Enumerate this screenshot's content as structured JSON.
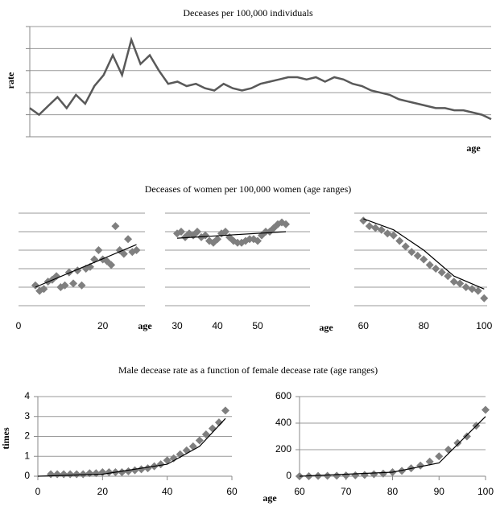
{
  "chart_data": [
    {
      "type": "line",
      "title": "Deceases per 100,000 individuals",
      "ylabel": "rate",
      "xlabel": "age",
      "color": "#595959",
      "grid": true,
      "axes": true,
      "ytick_labels": false,
      "xlim": [
        0,
        100
      ],
      "ylim": [
        0,
        5
      ],
      "yticks": [
        0,
        1,
        2,
        3,
        4,
        5
      ],
      "x": [
        0,
        2,
        4,
        6,
        8,
        10,
        12,
        14,
        16,
        18,
        20,
        22,
        24,
        26,
        28,
        30,
        32,
        34,
        36,
        38,
        40,
        42,
        44,
        46,
        48,
        50,
        52,
        54,
        56,
        58,
        60,
        62,
        64,
        66,
        68,
        70,
        72,
        74,
        76,
        78,
        80,
        82,
        84,
        86,
        88,
        90,
        92,
        94,
        96,
        98,
        100
      ],
      "values": [
        1.3,
        1.0,
        1.4,
        1.8,
        1.3,
        1.9,
        1.5,
        2.3,
        2.8,
        3.7,
        2.8,
        4.4,
        3.3,
        3.7,
        3.0,
        2.4,
        2.5,
        2.3,
        2.4,
        2.2,
        2.1,
        2.4,
        2.2,
        2.1,
        2.2,
        2.4,
        2.5,
        2.6,
        2.7,
        2.7,
        2.6,
        2.7,
        2.5,
        2.7,
        2.6,
        2.4,
        2.3,
        2.1,
        2.0,
        1.9,
        1.7,
        1.6,
        1.5,
        1.4,
        1.3,
        1.3,
        1.2,
        1.2,
        1.1,
        1.0,
        0.8
      ]
    },
    {
      "type": "scatter",
      "title": "Deceases of women per 100,000 women (age ranges)",
      "xlabel": "age",
      "color": "#7f7f7f",
      "grid": true,
      "ytick_labels": false,
      "xlim": [
        0,
        30
      ],
      "xticks": [
        0,
        20
      ],
      "ylim": [
        0,
        5
      ],
      "yticks": [
        0,
        1,
        2,
        3,
        4,
        5
      ],
      "x": [
        4,
        5,
        6,
        7,
        8,
        9,
        10,
        11,
        12,
        13,
        14,
        15,
        16,
        17,
        18,
        19,
        20,
        21,
        22,
        23,
        24,
        25,
        26,
        27,
        28
      ],
      "values": [
        1.1,
        0.8,
        0.9,
        1.3,
        1.4,
        1.6,
        1.0,
        1.1,
        1.8,
        1.2,
        1.9,
        1.1,
        2.0,
        2.1,
        2.5,
        3.0,
        2.5,
        2.4,
        2.2,
        4.3,
        3.0,
        2.8,
        3.6,
        2.9,
        3.0
      ],
      "trend_x": [
        4,
        28
      ],
      "trend_values": [
        1.0,
        3.3
      ]
    },
    {
      "type": "scatter",
      "xlabel": "age",
      "color": "#7f7f7f",
      "grid": true,
      "ytick_labels": false,
      "xlim": [
        27,
        63
      ],
      "xticks": [
        30,
        40,
        50
      ],
      "ylim": [
        0,
        5
      ],
      "yticks": [
        0,
        1,
        2,
        3,
        4,
        5
      ],
      "x": [
        30,
        31,
        32,
        33,
        34,
        35,
        36,
        37,
        38,
        39,
        40,
        41,
        42,
        43,
        44,
        45,
        46,
        47,
        48,
        49,
        50,
        51,
        52,
        53,
        54,
        55,
        56,
        57
      ],
      "values": [
        3.9,
        4.0,
        3.7,
        3.9,
        3.8,
        4.0,
        3.7,
        3.8,
        3.5,
        3.4,
        3.6,
        3.9,
        4.0,
        3.7,
        3.5,
        3.4,
        3.4,
        3.5,
        3.6,
        3.6,
        3.5,
        3.8,
        4.0,
        4.0,
        4.2,
        4.4,
        4.5,
        4.4
      ],
      "trend_x": [
        30,
        57
      ],
      "trend_values": [
        3.65,
        4.0
      ]
    },
    {
      "type": "scatter",
      "color": "#7f7f7f",
      "grid": true,
      "ytick_labels": false,
      "xlim": [
        57,
        101
      ],
      "xticks": [
        60,
        80,
        100
      ],
      "ylim": [
        0,
        5
      ],
      "yticks": [
        0,
        1,
        2,
        3,
        4,
        5
      ],
      "x": [
        60,
        62,
        64,
        66,
        68,
        70,
        72,
        74,
        76,
        78,
        80,
        82,
        84,
        86,
        88,
        90,
        92,
        94,
        96,
        98,
        100
      ],
      "values": [
        4.6,
        4.3,
        4.2,
        4.1,
        3.9,
        3.8,
        3.5,
        3.2,
        2.9,
        2.7,
        2.5,
        2.2,
        2.0,
        1.8,
        1.6,
        1.3,
        1.2,
        1.0,
        0.9,
        0.8,
        0.4
      ],
      "trend_x": [
        60,
        70,
        80,
        90,
        100
      ],
      "trend_values": [
        4.7,
        4.1,
        3.0,
        1.6,
        0.9
      ]
    },
    {
      "type": "scatter",
      "title": "Male decease rate as a function of female decease rate (age ranges)",
      "ylabel": "times",
      "color": "#7f7f7f",
      "grid": true,
      "axes": true,
      "xlim": [
        0,
        60
      ],
      "xticks": [
        0,
        20,
        40,
        60
      ],
      "ylim": [
        0,
        4
      ],
      "yticks": [
        0,
        1,
        2,
        3,
        4
      ],
      "x": [
        4,
        6,
        8,
        10,
        12,
        14,
        16,
        18,
        20,
        22,
        24,
        26,
        28,
        30,
        32,
        34,
        36,
        38,
        40,
        42,
        44,
        46,
        48,
        50,
        52,
        54,
        56,
        58
      ],
      "values": [
        0.1,
        0.1,
        0.1,
        0.1,
        0.1,
        0.1,
        0.15,
        0.15,
        0.2,
        0.2,
        0.2,
        0.2,
        0.25,
        0.3,
        0.35,
        0.4,
        0.5,
        0.6,
        0.8,
        0.9,
        1.1,
        1.3,
        1.5,
        1.8,
        2.1,
        2.4,
        2.7,
        3.3
      ],
      "trend_x": [
        0,
        20,
        40,
        50,
        58
      ],
      "trend_values": [
        0,
        0.1,
        0.6,
        1.5,
        2.9
      ]
    },
    {
      "type": "scatter",
      "xlabel": "age",
      "color": "#7f7f7f",
      "grid": true,
      "axes": true,
      "xlim": [
        60,
        100
      ],
      "xticks": [
        60,
        70,
        80,
        90,
        100
      ],
      "ylim": [
        0,
        600
      ],
      "yticks": [
        0,
        200,
        400,
        600
      ],
      "x": [
        60,
        62,
        64,
        66,
        68,
        70,
        72,
        74,
        76,
        78,
        80,
        82,
        84,
        86,
        88,
        90,
        92,
        94,
        96,
        98,
        100
      ],
      "values": [
        0,
        0,
        2,
        3,
        4,
        5,
        7,
        10,
        15,
        20,
        30,
        40,
        60,
        80,
        110,
        150,
        200,
        250,
        300,
        380,
        500
      ],
      "trend_x": [
        60,
        80,
        90,
        100
      ],
      "trend_values": [
        0,
        30,
        100,
        450
      ]
    }
  ]
}
